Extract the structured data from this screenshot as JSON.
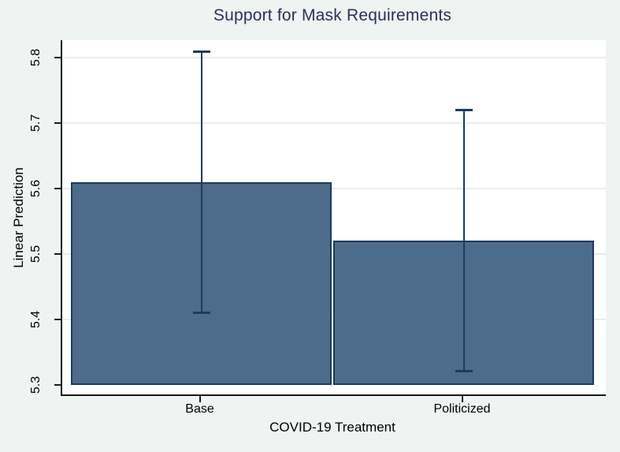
{
  "figure": {
    "colors": {
      "background": "#eff3f2",
      "plot_background": "#ffffff",
      "axis": "#1a1a1a",
      "grid": "#e8eeed",
      "bar_fill": "#4d6b8a",
      "bar_outline": "#1d3a5e",
      "error_bar": "#1f3a5c",
      "title_text": "#2b3154",
      "tick_text": "#000000"
    }
  },
  "chart_data": {
    "type": "bar",
    "title": "Support for Mask Requirements",
    "xlabel": "COVID-19 Treatment",
    "ylabel": "Linear Prediction",
    "categories": [
      "Base",
      "Politicized"
    ],
    "values": [
      5.61,
      5.52
    ],
    "error_low": [
      5.41,
      5.32
    ],
    "error_high": [
      5.81,
      5.72
    ],
    "yticks": [
      5.3,
      5.4,
      5.5,
      5.6,
      5.7,
      5.8
    ],
    "ytick_labels": [
      "5.3",
      "5.4",
      "5.5",
      "5.6",
      "5.7",
      "5.8"
    ],
    "ylim": [
      5.3,
      5.8
    ],
    "grid": "horizontal",
    "legend": "none"
  }
}
